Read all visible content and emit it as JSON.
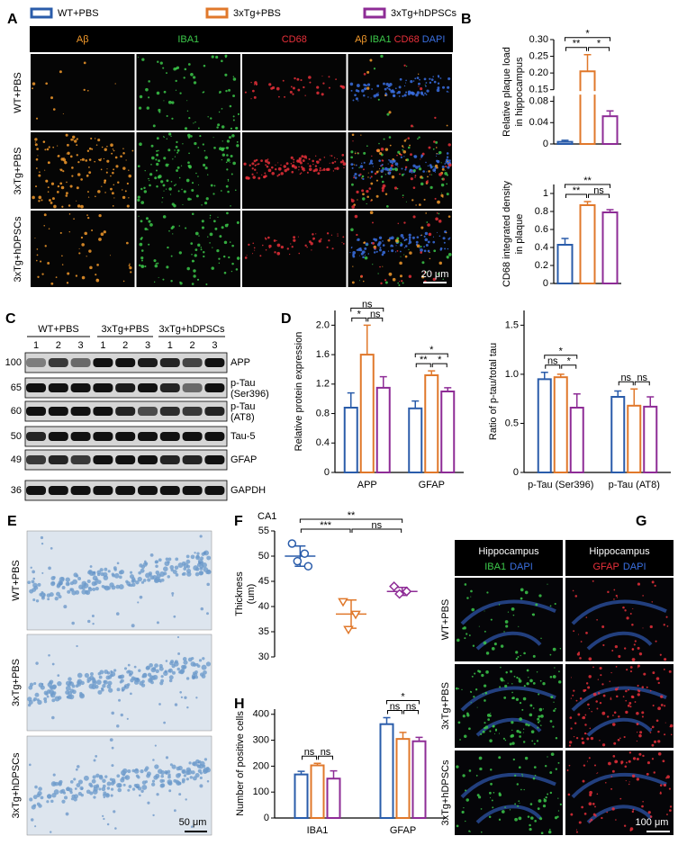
{
  "legend": {
    "items": [
      {
        "name": "WT+PBS",
        "color": "#2a5caa"
      },
      {
        "name": "3xTg+PBS",
        "color": "#e0782b"
      },
      {
        "name": "3xTg+hDPSCs",
        "color": "#8e2c96"
      }
    ]
  },
  "panelA": {
    "letter": "A",
    "columns": [
      "Aβ",
      "IBA1",
      "CD68"
    ],
    "column_colors": [
      "#f39a2b",
      "#3cc84a",
      "#e8303a"
    ],
    "merge": [
      {
        "text": "Aβ",
        "color": "#f39a2b"
      },
      {
        "text": "IBA1",
        "color": "#3cc84a"
      },
      {
        "text": "CD68",
        "color": "#e8303a"
      },
      {
        "text": "DAPI",
        "color": "#3a6fe0"
      }
    ],
    "rows": [
      "WT+PBS",
      "3xTg+PBS",
      "3xTg+hDPSCs"
    ],
    "scale_bar": "20 μm"
  },
  "panelB": {
    "letter": "B",
    "charts": [
      {
        "ylabel": [
          "Relative plaque load",
          "in hippocampus"
        ],
        "segments": [
          {
            "ylim": [
              0,
              0.09
            ],
            "yticks": [
              0,
              0.04,
              0.08
            ]
          },
          {
            "ylim": [
              0.15,
              0.3
            ],
            "yticks": [
              0.15,
              {
                "value": 0.2,
                "label": "0.20"
              },
              0.25,
              {
                "value": 0.3,
                "label": "0.30"
              }
            ]
          }
        ],
        "series": [
          {
            "values": [
              0.004
            ],
            "errors": [
              0.003
            ]
          },
          {
            "values": [
              0.205
            ],
            "errors": [
              0.05
            ]
          },
          {
            "values": [
              0.052
            ],
            "errors": [
              0.01
            ]
          }
        ],
        "significance": [
          {
            "from": 0,
            "to": 1,
            "label": "**"
          },
          {
            "from": 1,
            "to": 2,
            "label": "*"
          },
          {
            "from": 0,
            "to": 2,
            "label": "*"
          }
        ]
      },
      {
        "ylabel": [
          "CD68 integrated density",
          "in plaque"
        ],
        "ylim": [
          0,
          1.1
        ],
        "yticks": [
          0,
          0.2,
          0.4,
          0.6,
          0.8,
          1
        ],
        "series": [
          {
            "values": [
              0.43
            ],
            "errors": [
              0.07
            ]
          },
          {
            "values": [
              0.87
            ],
            "errors": [
              0.04
            ]
          },
          {
            "values": [
              0.79
            ],
            "errors": [
              0.03
            ]
          }
        ],
        "significance": [
          {
            "from": 0,
            "to": 1,
            "label": "**"
          },
          {
            "from": 1,
            "to": 2,
            "label": "ns"
          },
          {
            "from": 0,
            "to": 2,
            "label": "**"
          }
        ]
      }
    ]
  },
  "panelC": {
    "letter": "C",
    "groups": [
      "WT+PBS",
      "3xTg+PBS",
      "3xTg+hDPSCs"
    ],
    "lanes": [
      "1",
      "2",
      "3",
      "1",
      "2",
      "3",
      "1",
      "2",
      "3"
    ],
    "markers": [
      100,
      65,
      60,
      50,
      49,
      36
    ],
    "proteins": [
      [
        "APP"
      ],
      [
        "p-Tau",
        "(Ser396)"
      ],
      [
        "p-Tau",
        "(AT8)"
      ],
      [
        "Tau-5"
      ],
      [
        "GFAP"
      ],
      [
        "GAPDH"
      ]
    ]
  },
  "panelD": {
    "letter": "D",
    "charts": [
      {
        "ylabel": [
          "Relative protein expression"
        ],
        "categories": [
          "APP",
          "GFAP"
        ],
        "ylim": [
          0,
          2.2
        ],
        "yticks": [
          0,
          0.4,
          0.8,
          1.2,
          1.6,
          {
            "value": 2,
            "label": "2.0"
          }
        ],
        "series": [
          {
            "values": [
              0.88,
              0.87
            ],
            "errors": [
              0.2,
              0.1
            ]
          },
          {
            "values": [
              1.6,
              1.32
            ],
            "errors": [
              0.4,
              0.06
            ]
          },
          {
            "values": [
              1.15,
              1.1
            ],
            "errors": [
              0.15,
              0.05
            ]
          }
        ],
        "significance": [
          {
            "category": 0,
            "from": 0,
            "to": 1,
            "label": "*"
          },
          {
            "category": 0,
            "from": 1,
            "to": 2,
            "label": "ns"
          },
          {
            "category": 0,
            "from": 0,
            "to": 2,
            "label": "ns"
          },
          {
            "category": 1,
            "from": 0,
            "to": 1,
            "label": "**"
          },
          {
            "category": 1,
            "from": 1,
            "to": 2,
            "label": "*"
          },
          {
            "category": 1,
            "from": 0,
            "to": 2,
            "label": "*"
          }
        ]
      },
      {
        "ylabel": [
          "Ratio of p-tau/total tau"
        ],
        "categories": [
          "p-Tau (Ser396)",
          "p-Tau (AT8)"
        ],
        "ylim": [
          0,
          1.65
        ],
        "yticks": [
          0,
          0.5,
          {
            "value": 1,
            "label": "1.0"
          },
          1.5
        ],
        "series": [
          {
            "values": [
              0.95,
              0.77
            ],
            "errors": [
              0.07,
              0.06
            ]
          },
          {
            "values": [
              0.97,
              0.68
            ],
            "errors": [
              0.03,
              0.17
            ]
          },
          {
            "values": [
              0.66,
              0.67
            ],
            "errors": [
              0.14,
              0.1
            ]
          }
        ],
        "significance": [
          {
            "category": 0,
            "from": 0,
            "to": 1,
            "label": "ns"
          },
          {
            "category": 0,
            "from": 1,
            "to": 2,
            "label": "*"
          },
          {
            "category": 0,
            "from": 0,
            "to": 2,
            "label": "*"
          },
          {
            "category": 1,
            "from": 0,
            "to": 1,
            "label": "ns"
          },
          {
            "category": 1,
            "from": 1,
            "to": 2,
            "label": "ns"
          }
        ]
      }
    ]
  },
  "panelE": {
    "letter": "E",
    "rows": [
      "WT+PBS",
      "3xTg+PBS",
      "3xTg+hDPSCs"
    ],
    "scale_bar": "50 μm"
  },
  "panelF": {
    "letter": "F",
    "title": "CA1",
    "ylabel": [
      "Thickness",
      "(um)"
    ],
    "ylim": [
      30,
      55
    ],
    "yticks": [
      30,
      35,
      40,
      45,
      50,
      55
    ],
    "groups": [
      {
        "points": [
          52.5,
          50.5,
          49,
          48
        ],
        "mean": 50,
        "sd": 2
      },
      {
        "points": [
          41,
          38.5,
          35.5
        ],
        "mean": 38.5,
        "sd": 2.8
      },
      {
        "points": [
          44,
          43,
          42.5
        ],
        "mean": 43,
        "sd": 0.8
      }
    ],
    "significance": [
      {
        "from": 0,
        "to": 1,
        "label": "***"
      },
      {
        "from": 1,
        "to": 2,
        "label": "ns"
      },
      {
        "from": 0,
        "to": 2,
        "label": "**"
      }
    ]
  },
  "panelG": {
    "letter": "G",
    "headers": [
      {
        "title": "Hippocampus",
        "parts": [
          {
            "text": "IBA1",
            "color": "#3cc84a"
          },
          {
            "text": "DAPI",
            "color": "#3a6fe0"
          }
        ]
      },
      {
        "title": "Hippocampus",
        "parts": [
          {
            "text": "GFAP",
            "color": "#e8303a"
          },
          {
            "text": "DAPI",
            "color": "#3a6fe0"
          }
        ]
      }
    ],
    "rows": [
      "WT+PBS",
      "3xTg+PBS",
      "3xTg+hDPSCs"
    ],
    "scale_bar": "100 μm"
  },
  "panelH": {
    "letter": "H",
    "chart": {
      "ylabel": [
        "Number of positive cells"
      ],
      "categories": [
        "IBA1",
        "GFAP"
      ],
      "ylim": [
        0,
        420
      ],
      "yticks": [
        0,
        100,
        200,
        300,
        400
      ],
      "series": [
        {
          "values": [
            168,
            362
          ],
          "errors": [
            12,
            25
          ]
        },
        {
          "values": [
            203,
            305
          ],
          "errors": [
            8,
            25
          ]
        },
        {
          "values": [
            152,
            296
          ],
          "errors": [
            30,
            15
          ]
        }
      ],
      "significance": [
        {
          "category": 0,
          "from": 0,
          "to": 1,
          "label": "ns"
        },
        {
          "category": 0,
          "from": 1,
          "to": 2,
          "label": "ns"
        },
        {
          "category": 1,
          "from": 0,
          "to": 1,
          "label": "ns"
        },
        {
          "category": 1,
          "from": 1,
          "to": 2,
          "label": "ns"
        },
        {
          "category": 1,
          "from": 0,
          "to": 2,
          "label": "*"
        }
      ]
    }
  }
}
